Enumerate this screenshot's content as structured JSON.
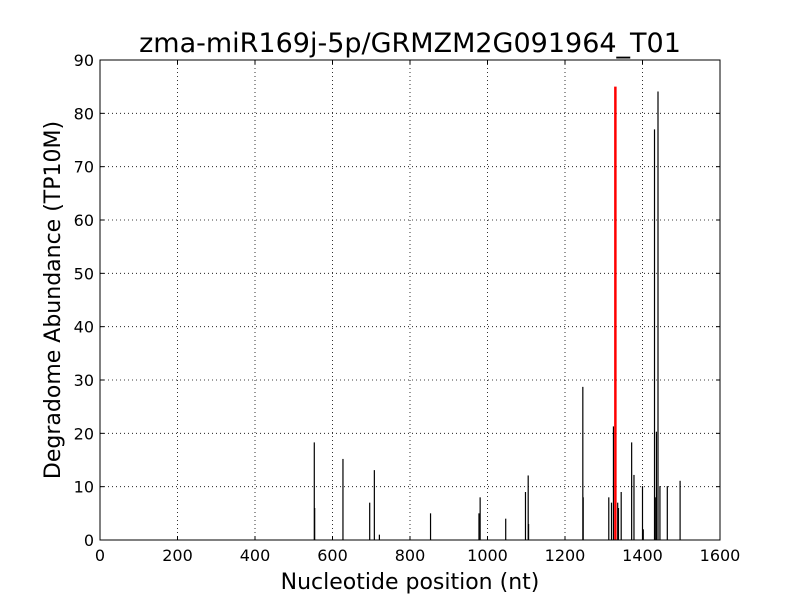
{
  "chart_data": {
    "type": "bar",
    "title": "zma-miR169j-5p/GRMZM2G091964_T01",
    "xlabel": "Nucleotide position (nt)",
    "ylabel": "Degradome Abundance (TP10M)",
    "xlim": [
      0,
      1600
    ],
    "ylim": [
      0,
      90
    ],
    "xticks": [
      0,
      200,
      400,
      600,
      800,
      1000,
      1200,
      1400,
      1600
    ],
    "yticks": [
      0,
      10,
      20,
      30,
      40,
      50,
      60,
      70,
      80,
      90
    ],
    "grid": true,
    "series": [
      {
        "color": "#000000",
        "points": [
          {
            "x": 553,
            "y": 18.3
          },
          {
            "x": 554,
            "y": 6
          },
          {
            "x": 627,
            "y": 15.2
          },
          {
            "x": 696,
            "y": 7
          },
          {
            "x": 708,
            "y": 13.1
          },
          {
            "x": 721,
            "y": 1
          },
          {
            "x": 853,
            "y": 5
          },
          {
            "x": 978,
            "y": 5
          },
          {
            "x": 981,
            "y": 8
          },
          {
            "x": 1047,
            "y": 4
          },
          {
            "x": 1098,
            "y": 9
          },
          {
            "x": 1105,
            "y": 12.1
          },
          {
            "x": 1106,
            "y": 3
          },
          {
            "x": 1246,
            "y": 28.7
          },
          {
            "x": 1247,
            "y": 8
          },
          {
            "x": 1313,
            "y": 8
          },
          {
            "x": 1320,
            "y": 7
          },
          {
            "x": 1325,
            "y": 21.3
          },
          {
            "x": 1336,
            "y": 7
          },
          {
            "x": 1338,
            "y": 6
          },
          {
            "x": 1345,
            "y": 9
          },
          {
            "x": 1372,
            "y": 18.3
          },
          {
            "x": 1378,
            "y": 12.2
          },
          {
            "x": 1400,
            "y": 10.1
          },
          {
            "x": 1402,
            "y": 2
          },
          {
            "x": 1431,
            "y": 77
          },
          {
            "x": 1433,
            "y": 8
          },
          {
            "x": 1436,
            "y": 20.3
          },
          {
            "x": 1440,
            "y": 84.1
          },
          {
            "x": 1445,
            "y": 10.1
          },
          {
            "x": 1464,
            "y": 10.1
          },
          {
            "x": 1497,
            "y": 11.1
          }
        ]
      },
      {
        "color": "#ff0000",
        "points": [
          {
            "x": 1330,
            "y": 85
          }
        ]
      }
    ]
  }
}
